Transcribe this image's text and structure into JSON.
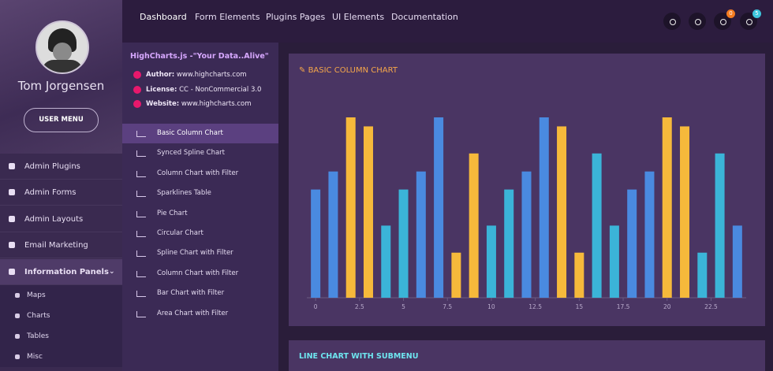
{
  "profile": {
    "name": "Tom Jorgensen",
    "button": "USER MENU"
  },
  "sidebar": {
    "items": [
      "Admin Plugins",
      "Admin Forms",
      "Admin Layouts",
      "Email Marketing",
      "Information Panels"
    ],
    "subitems": [
      "Maps",
      "Charts",
      "Tables",
      "Misc"
    ]
  },
  "topnav": [
    "Dashboard",
    "Form Elements",
    "Plugins Pages",
    "UI Elements",
    "Documentation"
  ],
  "badges": {
    "bell": "0",
    "chat": "5"
  },
  "panel": {
    "title": "HighCharts.js -\"Your Data..Alive\"",
    "info": [
      {
        "label": "Author:",
        "value": "www.highcharts.com"
      },
      {
        "label": "License:",
        "value": "CC - NonCommercial 3.0"
      },
      {
        "label": "Website:",
        "value": "www.highcharts.com"
      }
    ],
    "menu": [
      "Basic Column Chart",
      "Synced Spline Chart",
      "Column Chart with Filter",
      "Sparklines Table",
      "Pie Chart",
      "Circular Chart",
      "Spline Chart with Filter",
      "Column Chart with Filter",
      "Bar Chart with Filter",
      "Area Chart with Filter"
    ]
  },
  "chart_data": {
    "type": "bar",
    "title": "BASIC COLUMN CHART",
    "x": [
      0,
      1,
      2,
      3,
      4,
      5,
      6,
      7,
      8,
      9,
      10,
      11,
      12,
      13,
      14,
      15,
      16,
      17,
      18,
      19,
      20,
      21,
      22,
      23,
      24
    ],
    "values": [
      6,
      7,
      10,
      9.5,
      4,
      6,
      7,
      10,
      2.5,
      8,
      4,
      6,
      7,
      10,
      9.5,
      2.5,
      8,
      4,
      6,
      7,
      10,
      9.5,
      2.5,
      8,
      4
    ],
    "colors": [
      "#4a8ae0",
      "#4a8ae0",
      "#f6b93b",
      "#f6b93b",
      "#3bb4d8",
      "#3bb4d8",
      "#4a8ae0",
      "#4a8ae0",
      "#f6b93b",
      "#f6b93b",
      "#3bb4d8",
      "#3bb4d8",
      "#4a8ae0",
      "#4a8ae0",
      "#f6b93b",
      "#f6b93b",
      "#3bb4d8",
      "#3bb4d8",
      "#4a8ae0",
      "#4a8ae0",
      "#f6b93b",
      "#f6b93b",
      "#3bb4d8",
      "#3bb4d8",
      "#4a8ae0"
    ],
    "xlim": [
      -0.5,
      24.5
    ],
    "ylim": [
      0,
      10
    ],
    "xticks": [
      0,
      2.5,
      5,
      7.5,
      10,
      12.5,
      15,
      17.5,
      20,
      22.5
    ]
  },
  "cards": {
    "second_title": "LINE CHART WITH SUBMENU"
  }
}
